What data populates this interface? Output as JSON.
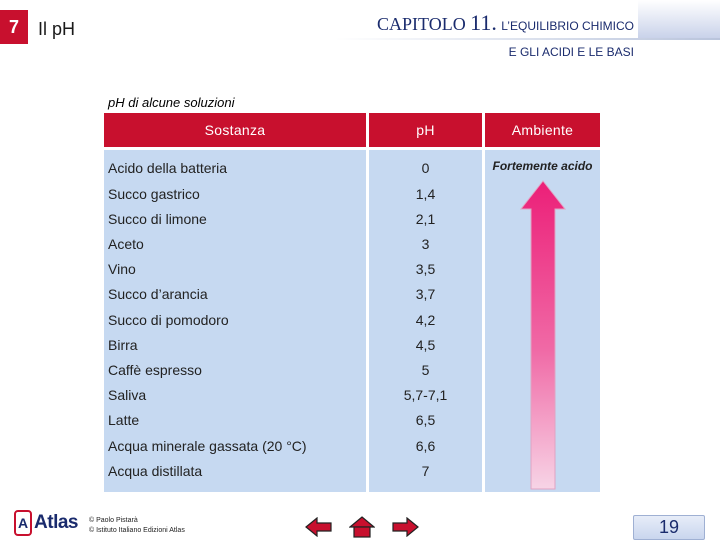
{
  "header": {
    "chapter_number": "7",
    "chapter_topic": "Il pH",
    "chapter_prefix": "CAPITOLO",
    "chapter_no": "11.",
    "chapter_title_line1": "L’EQUILIBRIO CHIMICO",
    "chapter_title_line2": "E GLI ACIDI E LE BASI"
  },
  "table": {
    "caption": "pH di alcune soluzioni",
    "headers": {
      "substance": "Sostanza",
      "ph": "pH",
      "environment": "Ambiente"
    },
    "environment_label": "Fortemente acido",
    "rows": [
      {
        "substance": "Acido della batteria",
        "ph": "0"
      },
      {
        "substance": "Succo gastrico",
        "ph": "1,4"
      },
      {
        "substance": "Succo di limone",
        "ph": "2,1"
      },
      {
        "substance": "Aceto",
        "ph": "3"
      },
      {
        "substance": "Vino",
        "ph": "3,5"
      },
      {
        "substance": "Succo d’arancia",
        "ph": "3,7"
      },
      {
        "substance": "Succo di pomodoro",
        "ph": "4,2"
      },
      {
        "substance": "Birra",
        "ph": "4,5"
      },
      {
        "substance": "Caffè espresso",
        "ph": "5"
      },
      {
        "substance": "Saliva",
        "ph": "5,7-7,1"
      },
      {
        "substance": "Latte",
        "ph": "6,5"
      },
      {
        "substance": "Acqua minerale gassata (20 °C)",
        "ph": "6,6"
      },
      {
        "substance": "Acqua distillata",
        "ph": "7"
      }
    ]
  },
  "footer": {
    "logo_text": "Atlas",
    "copyright_line1": "© Paolo Pistarà",
    "copyright_line2": "© Istituto Italiano Edizioni Atlas",
    "page_number": "19",
    "nav": {
      "prev_icon": "arrow-left-icon",
      "home_icon": "home-icon",
      "next_icon": "arrow-right-icon"
    }
  },
  "colors": {
    "header_red": "#c8102e",
    "cell_blue": "#c6d9f1",
    "arrow_top": "#ec1f78",
    "arrow_bottom": "#f7d4e6",
    "title_navy": "#1a2b6d"
  }
}
